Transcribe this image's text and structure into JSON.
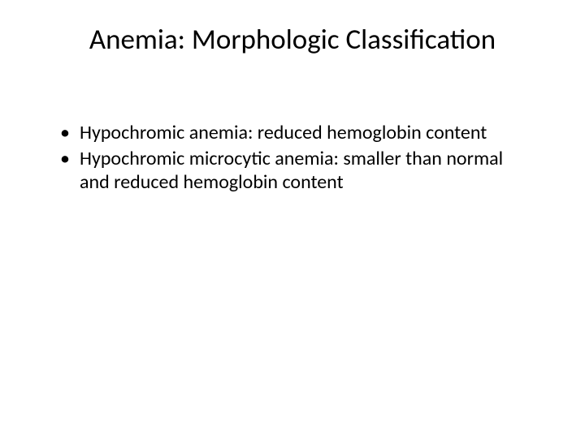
{
  "slide": {
    "title": "Anemia: Morphologic Classification",
    "bullets": [
      "Hypochromic anemia: reduced hemoglobin content",
      "Hypochromic microcytic anemia: smaller than normal and reduced hemoglobin content"
    ]
  },
  "style": {
    "background_color": "#ffffff",
    "text_color": "#000000",
    "title_fontsize": 35,
    "body_fontsize": 24,
    "font_family": "Calibri"
  }
}
